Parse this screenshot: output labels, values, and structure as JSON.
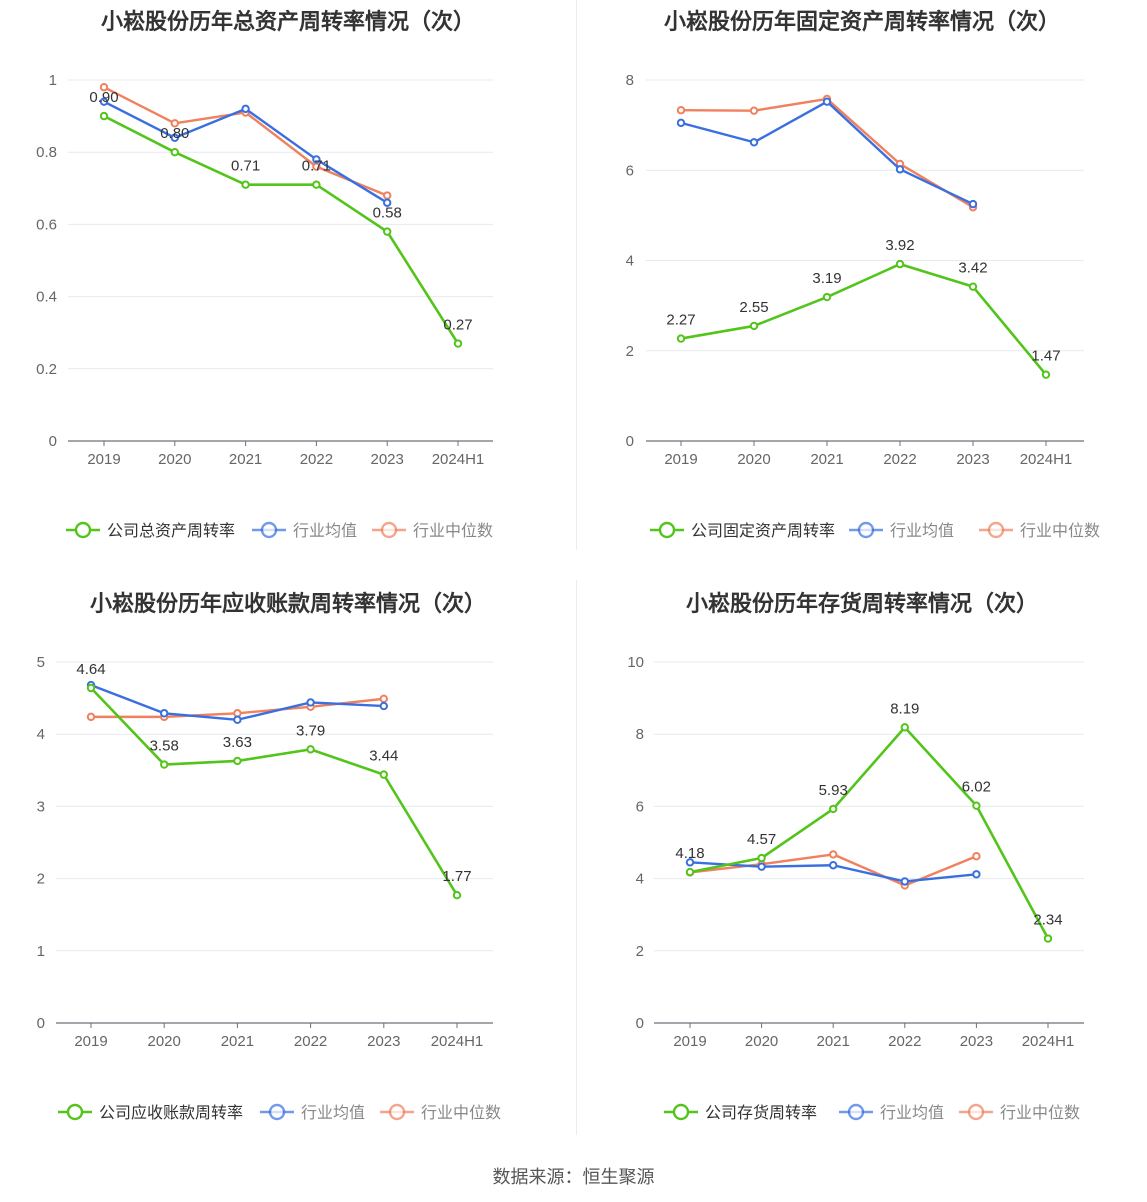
{
  "categories": [
    "2019",
    "2020",
    "2021",
    "2022",
    "2023",
    "2024H1"
  ],
  "colors": {
    "company": "#52c41a",
    "industry_avg": "#3a6fe0",
    "industry_median": "#f0805e"
  },
  "legend_labels": {
    "industry_avg": "行业均值",
    "industry_median": "行业中位数"
  },
  "source": "数据来源：恒生聚源",
  "chart_data": [
    {
      "type": "line",
      "title": "小崧股份历年总资产周转率情况（次）",
      "categories": [
        "2019",
        "2020",
        "2021",
        "2022",
        "2023",
        "2024H1"
      ],
      "ylim": [
        0,
        1
      ],
      "yticks": [
        "0",
        "0.2",
        "0.4",
        "0.6",
        "0.8",
        "1"
      ],
      "yticks_values": [
        0,
        0.2,
        0.4,
        0.6,
        0.8,
        1
      ],
      "series": [
        {
          "name": "公司总资产周转率",
          "values": [
            0.9,
            0.8,
            0.71,
            0.71,
            0.58,
            0.27
          ],
          "labels": [
            "0.90",
            "0.80",
            "0.71",
            "0.71",
            "0.58",
            "0.27"
          ]
        },
        {
          "name": "行业均值",
          "values": [
            0.94,
            0.84,
            0.92,
            0.78,
            0.66,
            null
          ]
        },
        {
          "name": "行业中位数",
          "values": [
            0.98,
            0.88,
            0.91,
            0.76,
            0.68,
            null
          ]
        }
      ],
      "legend": "bottom",
      "grid": true
    },
    {
      "type": "line",
      "title": "小崧股份历年固定资产周转率情况（次）",
      "categories": [
        "2019",
        "2020",
        "2021",
        "2022",
        "2023",
        "2024H1"
      ],
      "ylim": [
        0,
        8
      ],
      "yticks": [
        "0",
        "2",
        "4",
        "6",
        "8"
      ],
      "yticks_values": [
        0,
        2,
        4,
        6,
        8
      ],
      "series": [
        {
          "name": "公司固定资产周转率",
          "values": [
            2.27,
            2.55,
            3.19,
            3.92,
            3.42,
            1.47
          ],
          "labels": [
            "2.27",
            "2.55",
            "3.19",
            "3.92",
            "3.42",
            "1.47"
          ]
        },
        {
          "name": "行业均值",
          "values": [
            7.05,
            6.62,
            7.52,
            6.02,
            5.25,
            null
          ]
        },
        {
          "name": "行业中位数",
          "values": [
            7.33,
            7.32,
            7.58,
            6.14,
            5.18,
            null
          ]
        }
      ],
      "legend": "bottom",
      "grid": true
    },
    {
      "type": "line",
      "title": "小崧股份历年应收账款周转率情况（次）",
      "categories": [
        "2019",
        "2020",
        "2021",
        "2022",
        "2023",
        "2024H1"
      ],
      "ylim": [
        0,
        5
      ],
      "yticks": [
        "0",
        "1",
        "2",
        "3",
        "4",
        "5"
      ],
      "yticks_values": [
        0,
        1,
        2,
        3,
        4,
        5
      ],
      "series": [
        {
          "name": "公司应收账款周转率",
          "values": [
            4.64,
            3.58,
            3.63,
            3.79,
            3.44,
            1.77
          ],
          "labels": [
            "4.64",
            "3.58",
            "3.63",
            "3.79",
            "3.44",
            "1.77"
          ]
        },
        {
          "name": "行业均值",
          "values": [
            4.68,
            4.29,
            4.2,
            4.44,
            4.39,
            null
          ]
        },
        {
          "name": "行业中位数",
          "values": [
            4.24,
            4.24,
            4.29,
            4.38,
            4.49,
            null
          ]
        }
      ],
      "legend": "bottom",
      "grid": true
    },
    {
      "type": "line",
      "title": "小崧股份历年存货周转率情况（次）",
      "categories": [
        "2019",
        "2020",
        "2021",
        "2022",
        "2023",
        "2024H1"
      ],
      "ylim": [
        0,
        10
      ],
      "yticks": [
        "0",
        "2",
        "4",
        "6",
        "8",
        "10"
      ],
      "yticks_values": [
        0,
        2,
        4,
        6,
        8,
        10
      ],
      "series": [
        {
          "name": "公司存货周转率",
          "values": [
            4.18,
            4.57,
            5.93,
            8.19,
            6.02,
            2.34
          ],
          "labels": [
            "4.18",
            "4.57",
            "5.93",
            "8.19",
            "6.02",
            "2.34"
          ]
        },
        {
          "name": "行业均值",
          "values": [
            4.45,
            4.33,
            4.37,
            3.92,
            4.12,
            null
          ]
        },
        {
          "name": "行业中位数",
          "values": [
            4.17,
            4.4,
            4.67,
            3.81,
            4.62,
            null
          ]
        }
      ],
      "legend": "bottom",
      "grid": true
    }
  ]
}
